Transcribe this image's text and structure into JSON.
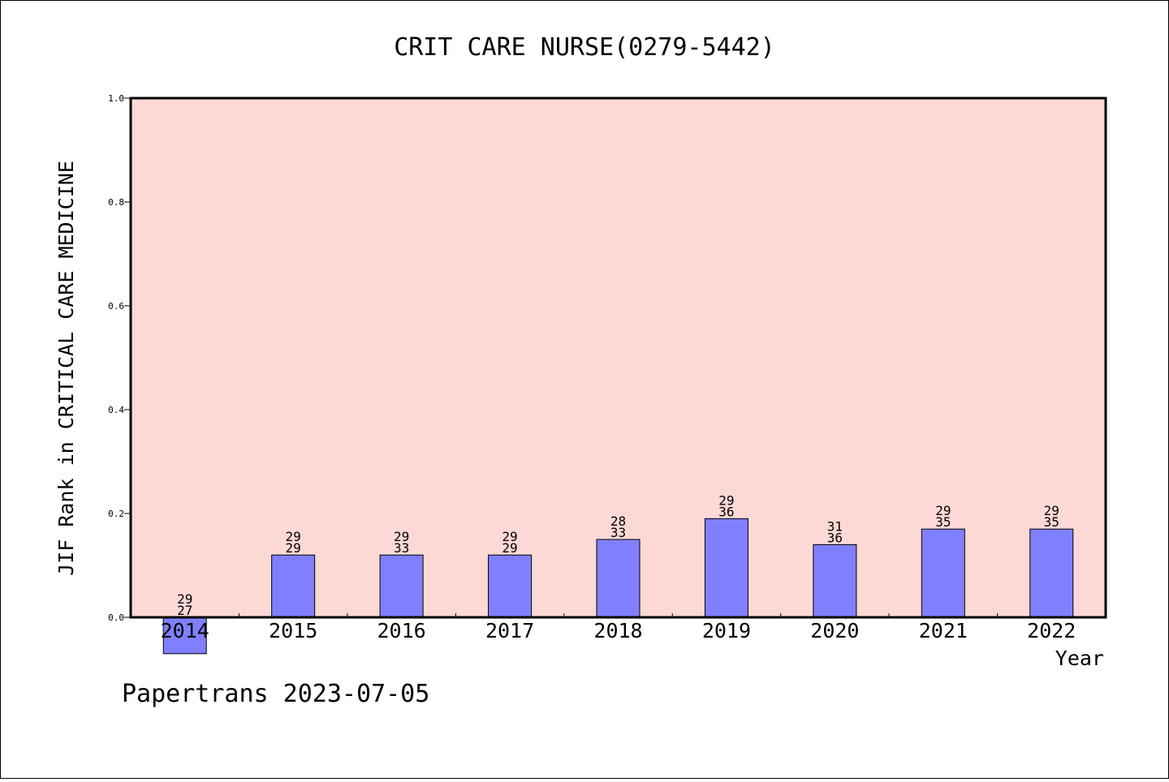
{
  "chart_data": {
    "type": "bar",
    "title": "CRIT CARE NURSE(0279-5442)",
    "xlabel": "Year",
    "ylabel": "JIF Rank in CRITICAL CARE MEDICINE",
    "categories": [
      "2014",
      "2015",
      "2016",
      "2017",
      "2018",
      "2019",
      "2020",
      "2021",
      "2022"
    ],
    "values": [
      -0.07,
      0.12,
      0.12,
      0.12,
      0.15,
      0.19,
      0.14,
      0.17,
      0.17
    ],
    "labels_top": [
      "29",
      "29",
      "29",
      "29",
      "28",
      "29",
      "31",
      "29",
      "29"
    ],
    "labels_bottom": [
      "27",
      "29",
      "33",
      "29",
      "33",
      "36",
      "36",
      "35",
      "35"
    ],
    "ylim": [
      0,
      1
    ],
    "yticks": [
      "0.0",
      "0.2",
      "0.4",
      "0.6",
      "0.8",
      "1.0"
    ],
    "grid": false,
    "colors": {
      "plot_bg": "#fdd9d6",
      "bar": "#8080ff"
    }
  },
  "footer": "Papertrans 2023-07-05"
}
